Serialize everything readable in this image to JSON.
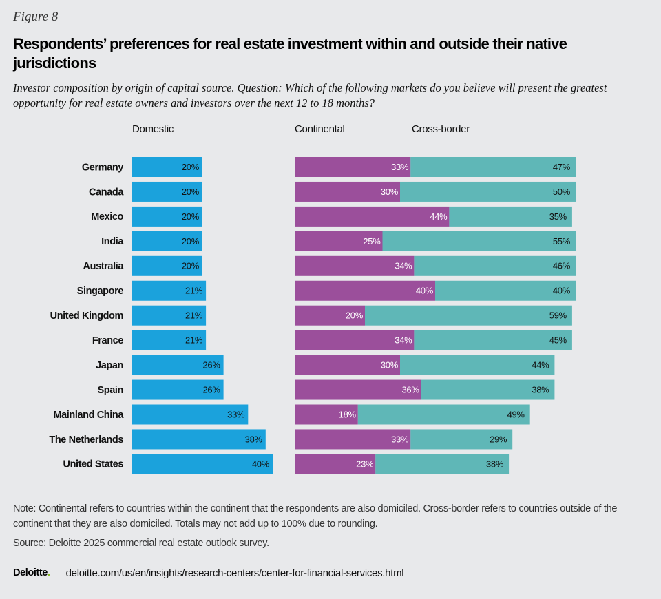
{
  "figure_label": "Figure 8",
  "title": "Respondents’ preferences for real estate investment within and outside their native jurisdictions",
  "subtitle": "Investor composition by origin of capital source. Question: Which of the following markets do you believe will present the greatest opportunity for real estate owners and investors over the next 12 to 18 months?",
  "colors": {
    "domestic": "#1ba2dc",
    "continental": "#9b4f9b",
    "cross_border": "#5fb7b7",
    "background": "#e8e9eb"
  },
  "chart_data": {
    "type": "bar",
    "orientation": "horizontal",
    "title": "Respondents’ preferences for real estate investment within and outside their native jurisdictions",
    "xlabel": "",
    "ylabel": "",
    "unit": "%",
    "categories": [
      "Germany",
      "Canada",
      "Mexico",
      "India",
      "Australia",
      "Singapore",
      "United Kingdom",
      "France",
      "Japan",
      "Spain",
      "Mainland China",
      "The Netherlands",
      "United States"
    ],
    "panels": [
      {
        "name": "Domestic",
        "stacked": false,
        "series": [
          {
            "name": "Domestic",
            "values": [
              20,
              20,
              20,
              20,
              20,
              21,
              21,
              21,
              26,
              26,
              33,
              38,
              40
            ]
          }
        ]
      },
      {
        "name": "Continental / Cross-border",
        "stacked": true,
        "series": [
          {
            "name": "Continental",
            "values": [
              33,
              30,
              44,
              25,
              34,
              40,
              20,
              34,
              30,
              36,
              18,
              33,
              23
            ]
          },
          {
            "name": "Cross-border",
            "values": [
              47,
              50,
              35,
              55,
              46,
              40,
              59,
              45,
              44,
              38,
              49,
              29,
              38
            ]
          }
        ]
      }
    ],
    "legend": [
      "Domestic",
      "Continental",
      "Cross-border"
    ],
    "legend_placement": "top",
    "grid": false
  },
  "headers": {
    "domestic": "Domestic",
    "continental": "Continental",
    "cross_border": "Cross-border"
  },
  "note": "Note: Continental refers to countries within the continent that the respondents are also domiciled. Cross-border refers to countries outside of the continent that they are also domiciled. Totals may not add up to 100% due to rounding.",
  "source": "Source: Deloitte 2025 commercial real estate outlook survey.",
  "footer": {
    "logo": "Deloitte",
    "logo_dot": ".",
    "url": "deloitte.com/us/en/insights/research-centers/center-for-financial-services.html"
  }
}
